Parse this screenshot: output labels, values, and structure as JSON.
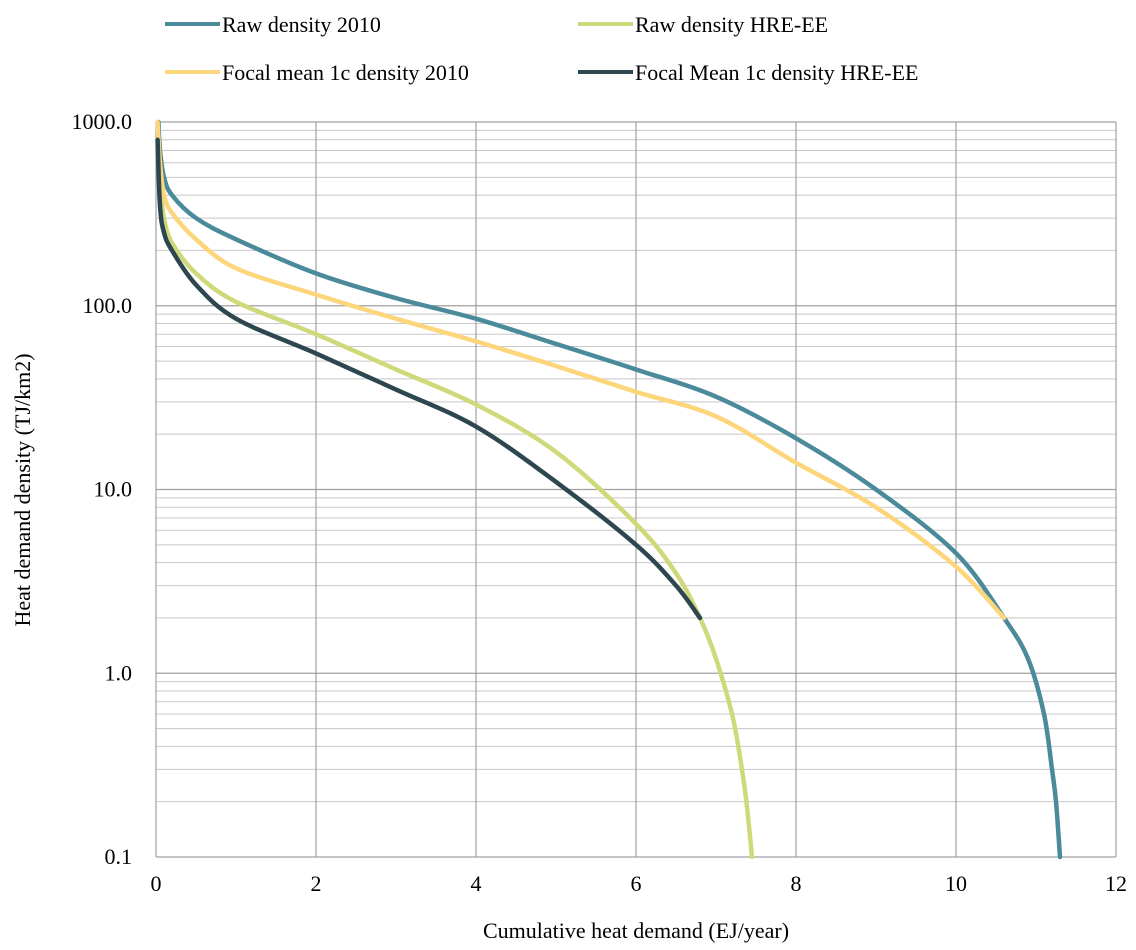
{
  "chart_data": {
    "type": "line",
    "xlabel": "Cumulative heat demand (EJ/year)",
    "ylabel": "Heat demand density  (TJ/km2)",
    "xlim": [
      0,
      12
    ],
    "ylim": [
      0.1,
      1000
    ],
    "yscale": "log",
    "x_ticks": [
      0,
      2,
      4,
      6,
      8,
      10,
      12
    ],
    "x_tick_labels": [
      "0",
      "2",
      "4",
      "6",
      "8",
      "10",
      "12"
    ],
    "y_ticks": [
      1000,
      100,
      10,
      1,
      0.1
    ],
    "y_tick_labels": [
      "1000.0",
      "100.0",
      "10.0",
      "1.0",
      "0.1"
    ],
    "grid": true,
    "minor_grid_y": true,
    "legend_position": "top",
    "series": [
      {
        "name": "Raw density 2010",
        "color": "#4a8a9a",
        "points": [
          [
            0.03,
            1000
          ],
          [
            0.05,
            700
          ],
          [
            0.1,
            500
          ],
          [
            0.2,
            400
          ],
          [
            0.5,
            300
          ],
          [
            1,
            230
          ],
          [
            2,
            150
          ],
          [
            3,
            110
          ],
          [
            4,
            85
          ],
          [
            5,
            62
          ],
          [
            6,
            45
          ],
          [
            7,
            32
          ],
          [
            8,
            19
          ],
          [
            9,
            10
          ],
          [
            10,
            4.5
          ],
          [
            10.6,
            2
          ],
          [
            10.9,
            1.2
          ],
          [
            11.1,
            0.6
          ],
          [
            11.2,
            0.3
          ],
          [
            11.25,
            0.2
          ],
          [
            11.3,
            0.1
          ]
        ]
      },
      {
        "name": "Raw density HRE-EE",
        "color": "#cfd97a",
        "points": [
          [
            0.02,
            800
          ],
          [
            0.05,
            450
          ],
          [
            0.1,
            300
          ],
          [
            0.2,
            220
          ],
          [
            0.5,
            150
          ],
          [
            1,
            105
          ],
          [
            2,
            70
          ],
          [
            3,
            45
          ],
          [
            4,
            29
          ],
          [
            5,
            16
          ],
          [
            6,
            6.5
          ],
          [
            6.5,
            3.5
          ],
          [
            6.8,
            2
          ],
          [
            7.0,
            1.2
          ],
          [
            7.2,
            0.6
          ],
          [
            7.3,
            0.35
          ],
          [
            7.38,
            0.2
          ],
          [
            7.45,
            0.1
          ]
        ]
      },
      {
        "name": "Focal mean 1c density 2010",
        "color": "#fdd57a",
        "points": [
          [
            0.02,
            1000
          ],
          [
            0.05,
            600
          ],
          [
            0.1,
            400
          ],
          [
            0.2,
            320
          ],
          [
            0.5,
            230
          ],
          [
            1,
            160
          ],
          [
            2,
            115
          ],
          [
            3,
            85
          ],
          [
            4,
            64
          ],
          [
            5,
            47
          ],
          [
            6,
            34
          ],
          [
            7,
            25
          ],
          [
            8,
            14
          ],
          [
            9,
            8
          ],
          [
            10,
            3.8
          ],
          [
            10.6,
            2
          ]
        ]
      },
      {
        "name": "Focal Mean 1c density HRE-EE",
        "color": "#2e4650",
        "points": [
          [
            0.02,
            800
          ],
          [
            0.05,
            350
          ],
          [
            0.1,
            250
          ],
          [
            0.2,
            200
          ],
          [
            0.5,
            130
          ],
          [
            1,
            85
          ],
          [
            2,
            55
          ],
          [
            3,
            35
          ],
          [
            4,
            22
          ],
          [
            5,
            11
          ],
          [
            6,
            5
          ],
          [
            6.5,
            3
          ],
          [
            6.8,
            2
          ]
        ]
      }
    ]
  }
}
